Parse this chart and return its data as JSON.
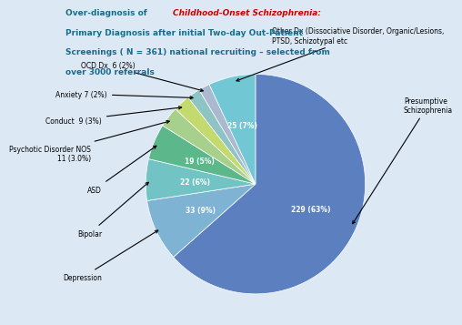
{
  "title_line1": "Over-diagnosis of ",
  "title_red": "Childhood-Onset Schizophrenia:",
  "title_line2": "Primary Diagnosis after initial Two-day ",
  "title_underline": "Out-Patient",
  "title_line3": "Screenings ( N = 361) national recruiting – selected from",
  "title_line4": "over 3000 referrals",
  "slices": [
    {
      "label": "Presumptive\nSchizophrenia",
      "value": 229,
      "pct": 63,
      "color": "#5b7fbf",
      "text_inside": "229 (63%)"
    },
    {
      "label": "Depression",
      "value": 33,
      "pct": 9,
      "color": "#7fb3d3",
      "text_inside": "33 (9%)"
    },
    {
      "label": "Bipolar",
      "value": 22,
      "pct": 6,
      "color": "#72c4c4",
      "text_inside": "22 (6%)"
    },
    {
      "label": "ASD",
      "value": 19,
      "pct": 5,
      "color": "#5cb88a",
      "text_inside": "19 (5%)"
    },
    {
      "label": "Psychotic Disorder NOS\n11 (3.0%)",
      "value": 11,
      "pct": 3,
      "color": "#a8d08d",
      "text_inside": ""
    },
    {
      "label": "Conduct  9 (3%)",
      "value": 9,
      "pct": 3,
      "color": "#c4d96e",
      "text_inside": ""
    },
    {
      "label": "Anxiety 7 (2%)",
      "value": 7,
      "pct": 2,
      "color": "#8ec4c4",
      "text_inside": ""
    },
    {
      "label": "OCD Dx  6 (2%)",
      "value": 6,
      "pct": 2,
      "color": "#aab8d0",
      "text_inside": ""
    },
    {
      "label": "Other Dx (Dissociative Disorder, Organic/Lesions,\nPTSD, Schizotypal etc",
      "value": 25,
      "pct": 7,
      "color": "#71c8d4",
      "text_inside": "25 (7%)"
    }
  ],
  "bg_color": "#dce9f5",
  "title_color_main": "#1a6b8a",
  "title_color_red": "#cc0000"
}
